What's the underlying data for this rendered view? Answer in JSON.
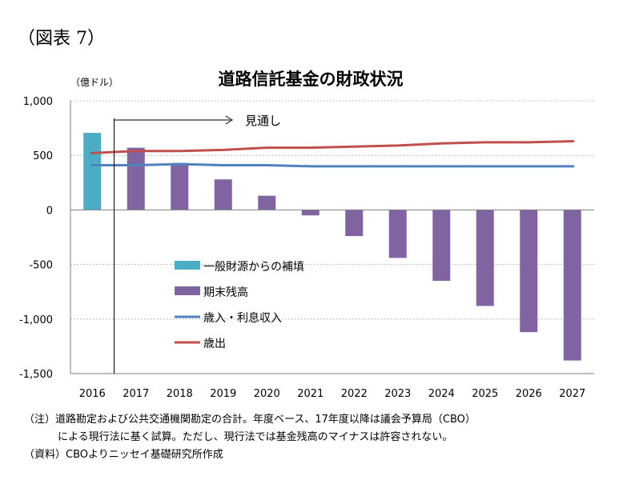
{
  "figure_label": "（図表 7）",
  "chart_data": {
    "type": "bar",
    "title": "道路信託基金の財政状況",
    "unit_label": "（億ドル）",
    "categories": [
      "2016",
      "2017",
      "2018",
      "2019",
      "2020",
      "2021",
      "2022",
      "2023",
      "2024",
      "2025",
      "2026",
      "2027"
    ],
    "ylim": [
      -1500,
      1000
    ],
    "yticks": [
      1000,
      500,
      0,
      -500,
      -1000,
      -1500
    ],
    "ytick_labels": [
      "1,000",
      "500",
      "0",
      "-500",
      "-1,000",
      "-1,500"
    ],
    "grid": true,
    "legend_position": "center-left",
    "annotation": "見通し",
    "series": [
      {
        "name": "一般財源からの補填",
        "type": "bar",
        "color": "#4bacc6",
        "values": [
          706,
          null,
          null,
          null,
          null,
          null,
          null,
          null,
          null,
          null,
          null,
          null
        ]
      },
      {
        "name": "期末残高",
        "type": "bar",
        "color": "#8064a2",
        "values": [
          null,
          570,
          430,
          280,
          130,
          -50,
          -240,
          -440,
          -650,
          -880,
          -1120,
          -1380
        ]
      },
      {
        "name": "歳入・利息収入",
        "type": "line",
        "color": "#4f81bd",
        "values": [
          410,
          410,
          420,
          410,
          410,
          400,
          400,
          400,
          400,
          400,
          400,
          400
        ]
      },
      {
        "name": "歳出",
        "type": "line",
        "color": "#c0504d",
        "values": [
          520,
          540,
          540,
          550,
          570,
          570,
          580,
          590,
          610,
          620,
          620,
          630
        ]
      }
    ]
  },
  "notes": {
    "line1": "（注）道路勘定および公共交通機関勘定の合計。年度ベース、17年度以降は議会予算局（CBO）",
    "line2": "による現行法に基く試算。ただし、現行法では基金残高のマイナスは許容されない。",
    "line3": "（資料）CBOよりニッセイ基礎研究所作成"
  }
}
